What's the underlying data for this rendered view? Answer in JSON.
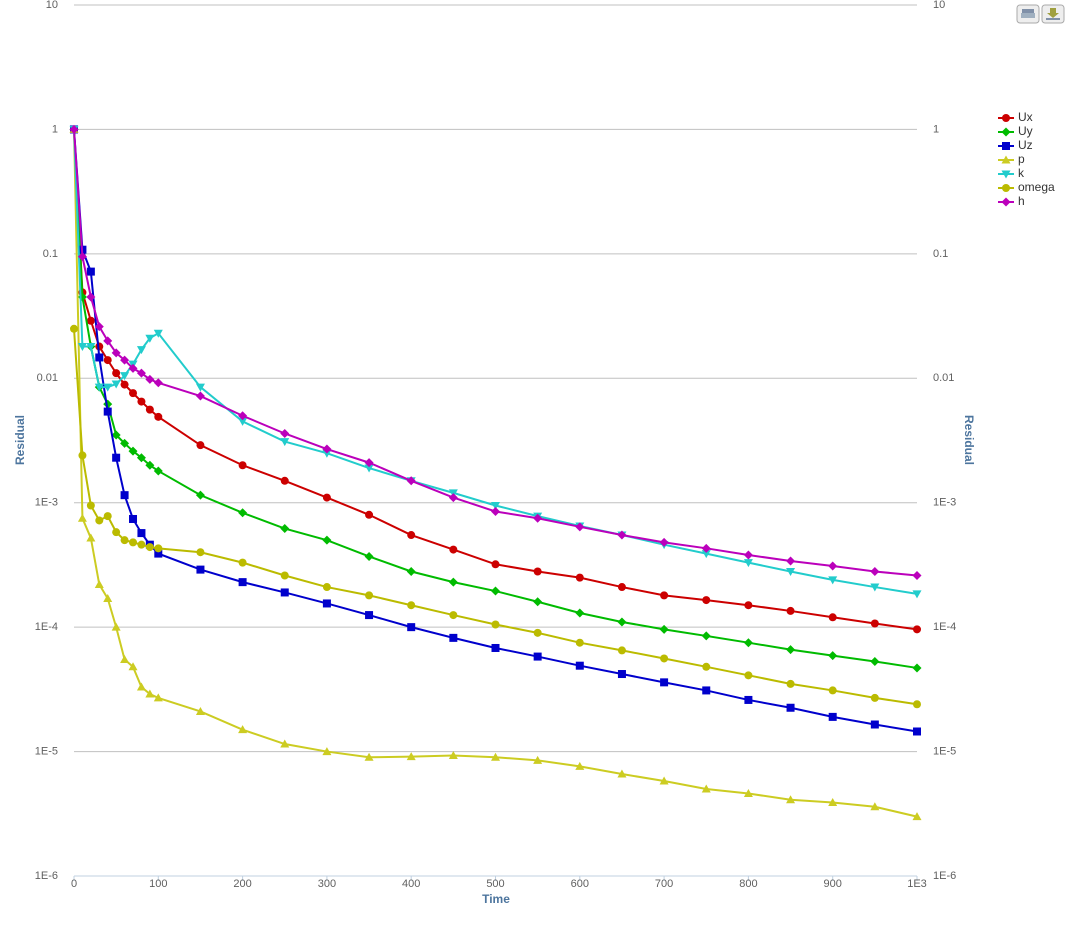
{
  "chart_data": {
    "type": "line",
    "xlabel": "Time",
    "ylabel": "Residual",
    "y2label": "Residual",
    "log_y": true,
    "grid": true,
    "legend": "right",
    "xlim": [
      0,
      1000
    ],
    "xticks": [
      0,
      100,
      200,
      300,
      400,
      500,
      600,
      700,
      800,
      900,
      {
        "value": 1000,
        "label": "1E3"
      }
    ],
    "ylim": [
      1e-06,
      10
    ],
    "yticks": [
      10,
      1,
      0.1,
      0.01,
      {
        "value": 0.001,
        "label": "1E-3"
      },
      {
        "value": 0.0001,
        "label": "1E-4"
      },
      {
        "value": 1e-05,
        "label": "1E-5"
      },
      {
        "value": 1e-06,
        "label": "1E-6"
      }
    ],
    "y2lim": [
      1e-06,
      10
    ],
    "y2ticks": [
      10,
      1,
      0.1,
      0.01,
      {
        "value": 0.001,
        "label": "1E-3"
      },
      {
        "value": 0.0001,
        "label": "1E-4"
      },
      {
        "value": 1e-05,
        "label": "1E-5"
      },
      {
        "value": 1e-06,
        "label": "1E-6"
      }
    ],
    "x": [
      0,
      10,
      20,
      30,
      40,
      50,
      60,
      70,
      80,
      90,
      100,
      150,
      200,
      250,
      300,
      350,
      400,
      450,
      500,
      550,
      600,
      650,
      700,
      750,
      800,
      850,
      900,
      950,
      1000
    ],
    "series": [
      {
        "name": "Ux",
        "color": "#cc0000",
        "marker": "circle",
        "values": [
          1,
          0.049,
          0.029,
          0.018,
          0.014,
          0.011,
          0.0089,
          0.0076,
          0.0065,
          0.0056,
          0.0049,
          0.0029,
          0.002,
          0.0015,
          0.0011,
          0.0008,
          0.00055,
          0.00042,
          0.00032,
          0.00028,
          0.00025,
          0.00021,
          0.00018,
          0.000165,
          0.00015,
          0.000135,
          0.00012,
          0.000107,
          9.6e-05
        ]
      },
      {
        "name": "Uy",
        "color": "#00bb00",
        "marker": "diamond",
        "values": [
          1,
          0.045,
          0.018,
          0.0085,
          0.0062,
          0.0035,
          0.003,
          0.0026,
          0.0023,
          0.002,
          0.0018,
          0.00115,
          0.00083,
          0.00062,
          0.0005,
          0.00037,
          0.00028,
          0.00023,
          0.000195,
          0.00016,
          0.00013,
          0.00011,
          9.6e-05,
          8.5e-05,
          7.5e-05,
          6.6e-05,
          5.9e-05,
          5.3e-05,
          4.7e-05
        ]
      },
      {
        "name": "Uz",
        "color": "#0000cc",
        "marker": "square",
        "values": [
          1,
          0.108,
          0.072,
          0.0147,
          0.0054,
          0.0023,
          0.00115,
          0.00074,
          0.00057,
          0.00046,
          0.00039,
          0.00029,
          0.00023,
          0.00019,
          0.000155,
          0.000125,
          0.0001,
          8.2e-05,
          6.8e-05,
          5.8e-05,
          4.9e-05,
          4.2e-05,
          3.6e-05,
          3.1e-05,
          2.6e-05,
          2.25e-05,
          1.9e-05,
          1.65e-05,
          1.45e-05
        ]
      },
      {
        "name": "p",
        "color": "#cccc22",
        "marker": "triangle",
        "values": [
          1,
          0.00075,
          0.00052,
          0.00022,
          0.00017,
          0.0001,
          5.5e-05,
          4.8e-05,
          3.3e-05,
          2.9e-05,
          2.7e-05,
          2.1e-05,
          1.5e-05,
          1.15e-05,
          1e-05,
          9e-06,
          9.1e-06,
          9.3e-06,
          9e-06,
          8.5e-06,
          7.6e-06,
          6.6e-06,
          5.8e-06,
          5e-06,
          4.6e-06,
          4.1e-06,
          3.9e-06,
          3.6e-06,
          3e-06
        ]
      },
      {
        "name": "k",
        "color": "#22cccc",
        "marker": "triangle-down",
        "values": [
          1,
          0.018,
          0.018,
          0.0085,
          0.0085,
          0.009,
          0.0105,
          0.013,
          0.017,
          0.021,
          0.023,
          0.0085,
          0.0045,
          0.0031,
          0.0025,
          0.0019,
          0.0015,
          0.0012,
          0.00095,
          0.00078,
          0.00065,
          0.00055,
          0.00046,
          0.00039,
          0.00033,
          0.00028,
          0.00024,
          0.00021,
          0.000185
        ]
      },
      {
        "name": "omega",
        "color": "#bbbb00",
        "marker": "circle",
        "values": [
          0.025,
          0.0024,
          0.00095,
          0.00072,
          0.00078,
          0.00058,
          0.0005,
          0.00048,
          0.00046,
          0.00044,
          0.00043,
          0.0004,
          0.00033,
          0.00026,
          0.00021,
          0.00018,
          0.00015,
          0.000125,
          0.000105,
          9e-05,
          7.5e-05,
          6.5e-05,
          5.6e-05,
          4.8e-05,
          4.1e-05,
          3.5e-05,
          3.1e-05,
          2.7e-05,
          2.4e-05
        ]
      },
      {
        "name": "h",
        "color": "#bb00bb",
        "marker": "diamond",
        "values": [
          1,
          0.095,
          0.045,
          0.026,
          0.02,
          0.016,
          0.014,
          0.012,
          0.011,
          0.0098,
          0.0092,
          0.0072,
          0.005,
          0.0036,
          0.0027,
          0.0021,
          0.0015,
          0.0011,
          0.00085,
          0.00075,
          0.00064,
          0.00055,
          0.00048,
          0.00043,
          0.00038,
          0.00034,
          0.00031,
          0.00028,
          0.00026
        ]
      }
    ]
  }
}
